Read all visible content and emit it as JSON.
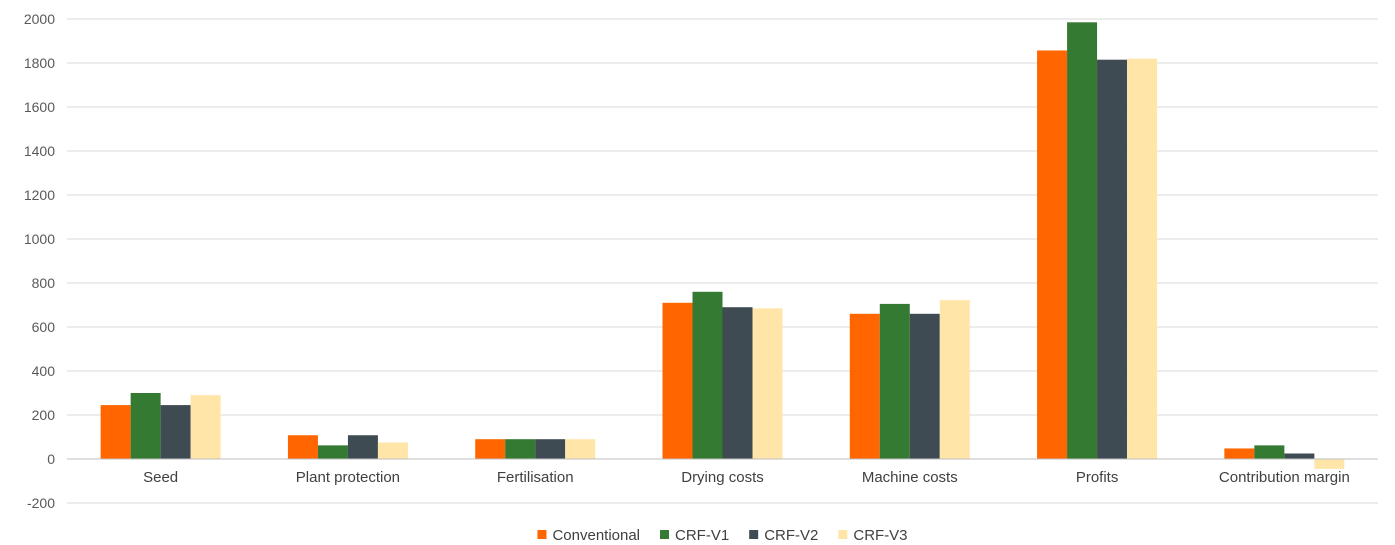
{
  "chart_data": {
    "type": "bar",
    "title": "",
    "xlabel": "",
    "ylabel": "",
    "ylim": [
      -200,
      2000
    ],
    "yticks": [
      "-200",
      "0",
      "200",
      "400",
      "600",
      "800",
      "1000",
      "1200",
      "1400",
      "1600",
      "1800",
      "2000"
    ],
    "grid": true,
    "legend_position": "bottom",
    "categories": [
      "Seed",
      "Plant protection",
      "Fertilisation",
      "Drying costs",
      "Machine costs",
      "Profits",
      "Contribution margin"
    ],
    "series": [
      {
        "name": "Conventional",
        "color": "#ff6600",
        "values": [
          245,
          108,
          90,
          710,
          660,
          1857,
          48
        ]
      },
      {
        "name": "CRF-V1",
        "color": "#357a32",
        "values": [
          300,
          62,
          90,
          760,
          705,
          1985,
          62
        ]
      },
      {
        "name": "CRF-V2",
        "color": "#3e4b52",
        "values": [
          245,
          108,
          90,
          690,
          660,
          1815,
          25
        ]
      },
      {
        "name": "CRF-V3",
        "color": "#ffe6a8",
        "values": [
          290,
          75,
          90,
          685,
          722,
          1820,
          -45
        ]
      }
    ]
  }
}
